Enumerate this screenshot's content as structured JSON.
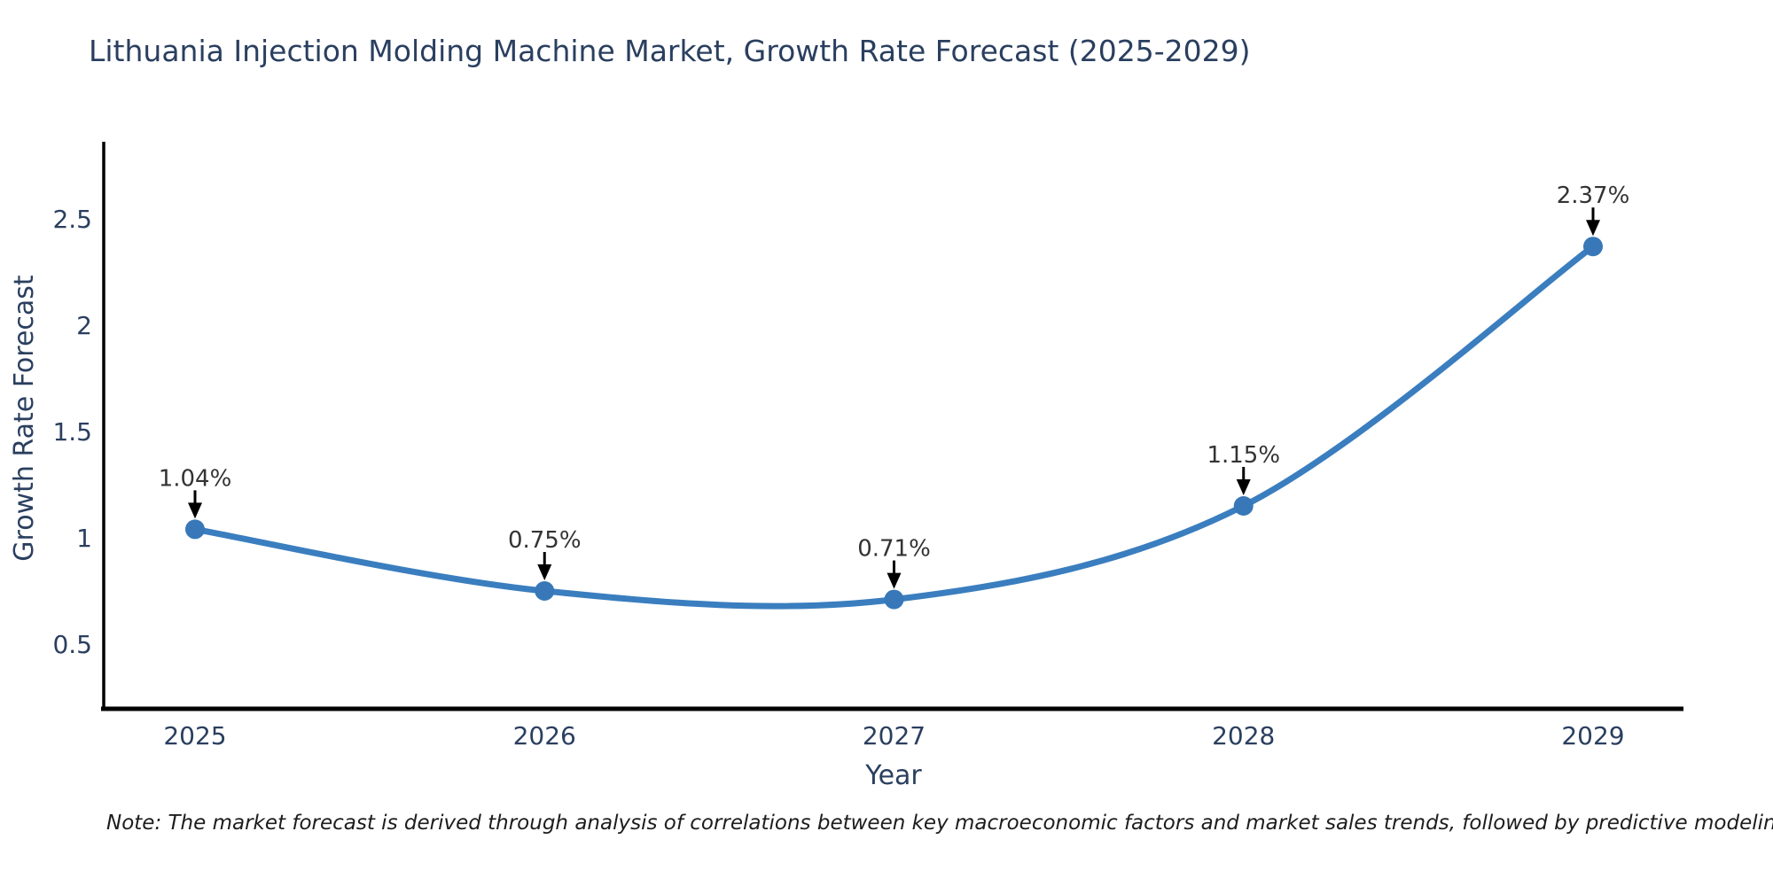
{
  "page": {
    "background": "#ffffff"
  },
  "chart_data": {
    "type": "line",
    "title": "Lithuania Injection Molding Machine Market, Growth Rate Forecast (2025-2029)",
    "xlabel": "Year",
    "ylabel": "Growth Rate Forecast",
    "categories": [
      "2025",
      "2026",
      "2027",
      "2028",
      "2029"
    ],
    "series": [
      {
        "name": "Growth Rate Forecast",
        "values": [
          1.04,
          0.75,
          0.71,
          1.15,
          2.37
        ]
      }
    ],
    "point_labels": [
      "1.04%",
      "0.75%",
      "0.71%",
      "1.15%",
      "2.37%"
    ],
    "ytick_values": [
      0.5,
      1,
      1.5,
      2,
      2.5
    ],
    "ytick_labels": [
      "0.5",
      "1",
      "1.5",
      "2",
      "2.5"
    ],
    "ylim": [
      0.19,
      2.86
    ],
    "grid": false,
    "legend_position": "none",
    "line_shape": "spline",
    "colors": {
      "line": "#3a7ebf",
      "marker": "#3878b8",
      "axis": "#000000",
      "text": "#2a3f5f",
      "annotation_text": "#333333",
      "arrow": "#000000"
    }
  },
  "note": {
    "text": "Note: The market forecast is derived through analysis of correlations between key macroeconomic factors and market sales trends, followed by predictive modeling to project future sales"
  }
}
